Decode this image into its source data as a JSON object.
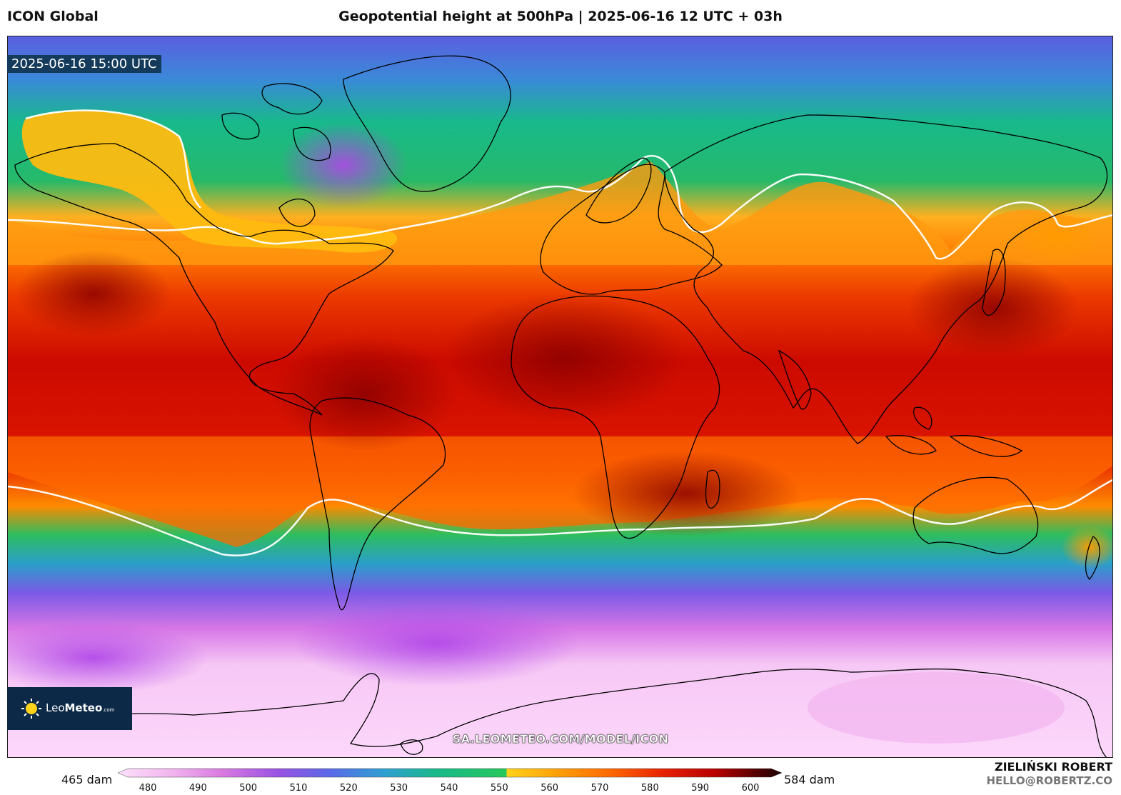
{
  "header": {
    "model": "ICON Global",
    "title": "Geopotential height at 500hPa | 2025-06-16 12 UTC + 03h"
  },
  "valid_time": "2025-06-16 15:00 UTC",
  "logo": {
    "brand_a": "Leo",
    "brand_b": "Meteo",
    "suffix": ".com"
  },
  "source_url": "SA.LEOMETEO.COM/MODEL/ICON",
  "colorbar": {
    "min_label": "465 dam",
    "max_label": "584 dam",
    "ticks": [
      "480",
      "490",
      "500",
      "510",
      "520",
      "530",
      "540",
      "550",
      "560",
      "570",
      "580",
      "590",
      "600"
    ],
    "colors": {
      "480": "#fde0fb",
      "490": "#f2b5ef",
      "500": "#d778e0",
      "510": "#9a52e3",
      "520": "#5b6ae8",
      "530": "#2f9fd2",
      "540": "#18b98a",
      "550": "#26c85a",
      "555": "#ffd21a",
      "560": "#ffa10a",
      "570": "#ff6a00",
      "580": "#e82200",
      "590": "#b80000",
      "600": "#3a0000"
    }
  },
  "credit": {
    "author": "ZIELIŃSKI ROBERT",
    "email": "HELLO@ROBERTZ.CO"
  }
}
